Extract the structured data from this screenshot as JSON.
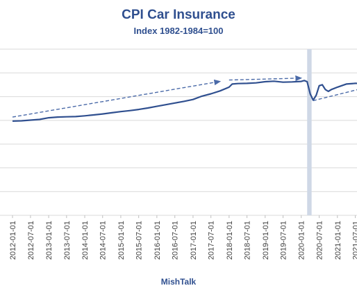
{
  "chart_data": {
    "type": "line",
    "title": "CPI Car Insurance",
    "subtitle": "Index 1982-1984=100",
    "source": "MishTalk",
    "xlabel": "",
    "ylabel": "",
    "grid": true,
    "legend": "none",
    "y_tick_labels_visible": false,
    "ylim": [
      0,
      700
    ],
    "y_ticks": [
      0,
      100,
      200,
      300,
      400,
      500,
      600,
      700
    ],
    "x_tick_labels": [
      "2012-01-01",
      "2012-07-01",
      "2013-01-01",
      "2013-07-01",
      "2014-01-01",
      "2014-07-01",
      "2015-01-01",
      "2015-07-01",
      "2016-01-01",
      "2016-07-01",
      "2017-01-01",
      "2017-07-01",
      "2018-01-01",
      "2018-07-01",
      "2019-01-01",
      "2019-07-01",
      "2020-01-01",
      "2020-07-01",
      "2021-01-01",
      "2021-07-01"
    ],
    "xlim": [
      "2012-01-01",
      "2021-11-01"
    ],
    "recession_band": {
      "start": "2020-03-01",
      "end": "2020-04-15",
      "color": "#cfd8e6"
    },
    "colors": {
      "series": "#2f4f8f",
      "trend": "#4a6aa8",
      "grid": "#d9d9d9",
      "title": "#2f4f8f"
    },
    "series": [
      {
        "style": "solid",
        "points": [
          [
            "2012-01-01",
            397
          ],
          [
            "2012-04-01",
            398
          ],
          [
            "2012-07-01",
            401
          ],
          [
            "2012-10-01",
            404
          ],
          [
            "2013-01-01",
            411
          ],
          [
            "2013-04-01",
            414
          ],
          [
            "2013-07-01",
            415
          ],
          [
            "2013-10-01",
            416
          ],
          [
            "2014-01-01",
            419
          ],
          [
            "2014-04-01",
            423
          ],
          [
            "2014-07-01",
            427
          ],
          [
            "2014-10-01",
            432
          ],
          [
            "2015-01-01",
            437
          ],
          [
            "2015-04-01",
            441
          ],
          [
            "2015-07-01",
            446
          ],
          [
            "2015-10-01",
            452
          ],
          [
            "2016-01-01",
            459
          ],
          [
            "2016-04-01",
            466
          ],
          [
            "2016-07-01",
            473
          ],
          [
            "2016-10-01",
            480
          ],
          [
            "2017-01-01",
            488
          ],
          [
            "2017-04-01",
            502
          ],
          [
            "2017-07-01",
            512
          ],
          [
            "2017-10-01",
            524
          ],
          [
            "2018-01-01",
            540
          ],
          [
            "2018-02-01",
            553
          ],
          [
            "2018-04-01",
            555
          ],
          [
            "2018-07-01",
            556
          ],
          [
            "2018-10-01",
            558
          ],
          [
            "2019-01-01",
            563
          ],
          [
            "2019-04-01",
            565
          ],
          [
            "2019-07-01",
            561
          ],
          [
            "2019-10-01",
            562
          ],
          [
            "2020-01-01",
            564
          ],
          [
            "2020-02-01",
            568
          ],
          [
            "2020-03-01",
            563
          ],
          [
            "2020-04-01",
            512
          ],
          [
            "2020-05-01",
            485
          ],
          [
            "2020-06-01",
            506
          ],
          [
            "2020-07-01",
            546
          ],
          [
            "2020-08-01",
            550
          ],
          [
            "2020-09-01",
            530
          ],
          [
            "2020-10-01",
            522
          ],
          [
            "2020-11-01",
            530
          ],
          [
            "2021-01-01",
            540
          ],
          [
            "2021-04-01",
            553
          ],
          [
            "2021-07-01",
            556
          ],
          [
            "2021-11-01",
            555
          ]
        ]
      },
      {
        "style": "dashed-arrow",
        "points": [
          [
            "2012-01-01",
            414
          ],
          [
            "2017-10-01",
            564
          ]
        ]
      },
      {
        "style": "dashed-arrow",
        "points": [
          [
            "2018-01-01",
            570
          ],
          [
            "2020-01-01",
            578
          ]
        ]
      },
      {
        "style": "dashed",
        "points": [
          [
            "2020-05-01",
            483
          ],
          [
            "2021-11-01",
            540
          ]
        ]
      }
    ]
  }
}
